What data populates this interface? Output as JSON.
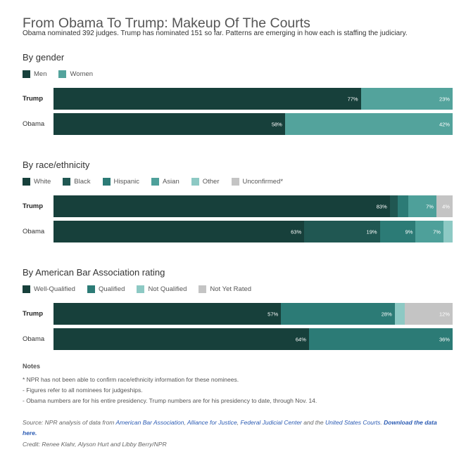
{
  "title": "From Obama To Trump: Makeup Of The Courts",
  "subtitle": "Obama nominated 392 judges. Trump has nominated 151 so far. Patterns are emerging in how each is staffing the judiciary.",
  "chart_data": [
    {
      "type": "bar",
      "stacked": true,
      "orientation": "horizontal",
      "title": "By gender",
      "categories": [
        "Trump",
        "Obama"
      ],
      "series": [
        {
          "name": "Men",
          "color": "#17403b",
          "values": [
            77,
            58
          ],
          "labels": [
            "77%",
            "58%"
          ]
        },
        {
          "name": "Women",
          "color": "#53a39c",
          "values": [
            23,
            42
          ],
          "labels": [
            "23%",
            "42%"
          ]
        }
      ],
      "xlim": [
        0,
        100
      ]
    },
    {
      "type": "bar",
      "stacked": true,
      "orientation": "horizontal",
      "title": "By race/ethnicity",
      "categories": [
        "Trump",
        "Obama"
      ],
      "series": [
        {
          "name": "White",
          "color": "#17403b",
          "values": [
            83,
            63
          ],
          "labels": [
            "83%",
            "63%"
          ]
        },
        {
          "name": "Black",
          "color": "#205752",
          "values": [
            2,
            19
          ],
          "labels": [
            "",
            "19%"
          ]
        },
        {
          "name": "Hispanic",
          "color": "#2c7b76",
          "values": [
            2.5,
            9
          ],
          "labels": [
            "",
            "9%"
          ]
        },
        {
          "name": "Asian",
          "color": "#4ea09a",
          "values": [
            7,
            7
          ],
          "labels": [
            "7%",
            "7%"
          ]
        },
        {
          "name": "Other",
          "color": "#8dc9c4",
          "values": [
            0,
            2.3
          ],
          "labels": [
            "",
            ""
          ]
        },
        {
          "name": "Unconfirmed*",
          "color": "#c4c4c4",
          "values": [
            4,
            0
          ],
          "labels": [
            "4%",
            ""
          ]
        }
      ],
      "xlim": [
        0,
        100
      ]
    },
    {
      "type": "bar",
      "stacked": true,
      "orientation": "horizontal",
      "title": "By American Bar Association rating",
      "categories": [
        "Trump",
        "Obama"
      ],
      "series": [
        {
          "name": "Well-Qualified",
          "color": "#17403b",
          "values": [
            57,
            64
          ],
          "labels": [
            "57%",
            "64%"
          ]
        },
        {
          "name": "Qualified",
          "color": "#2c7b76",
          "values": [
            28.5,
            36
          ],
          "labels": [
            "28%",
            "36%"
          ]
        },
        {
          "name": "Not Qualified",
          "color": "#8dc9c4",
          "values": [
            2.5,
            0
          ],
          "labels": [
            "",
            ""
          ]
        },
        {
          "name": "Not Yet Rated",
          "color": "#c4c4c4",
          "values": [
            12,
            0
          ],
          "labels": [
            "12%",
            ""
          ]
        }
      ],
      "xlim": [
        0,
        100
      ]
    }
  ],
  "notes": {
    "heading": "Notes",
    "items": [
      "* NPR has not been able to confirm race/ethnicity information for these nominees.",
      "- Figures refer to all nominees for judgeships.",
      "- Obama numbers are for his entire presidency. Trump numbers are for his presidency to date, through Nov. 14."
    ]
  },
  "source": {
    "prefix": "Source: NPR analysis of data from ",
    "aba": "American Bar Association",
    "sep1": ", ",
    "afj": "Alliance for Justice",
    "sep2": ", ",
    "fjc": "Federal Judicial Center",
    "and": " and the ",
    "usc": "United States Courts",
    "dot": ". ",
    "download": "Download the data here."
  },
  "credit": "Credit: Renee Klahr, Alyson Hurt and Libby Berry/NPR"
}
